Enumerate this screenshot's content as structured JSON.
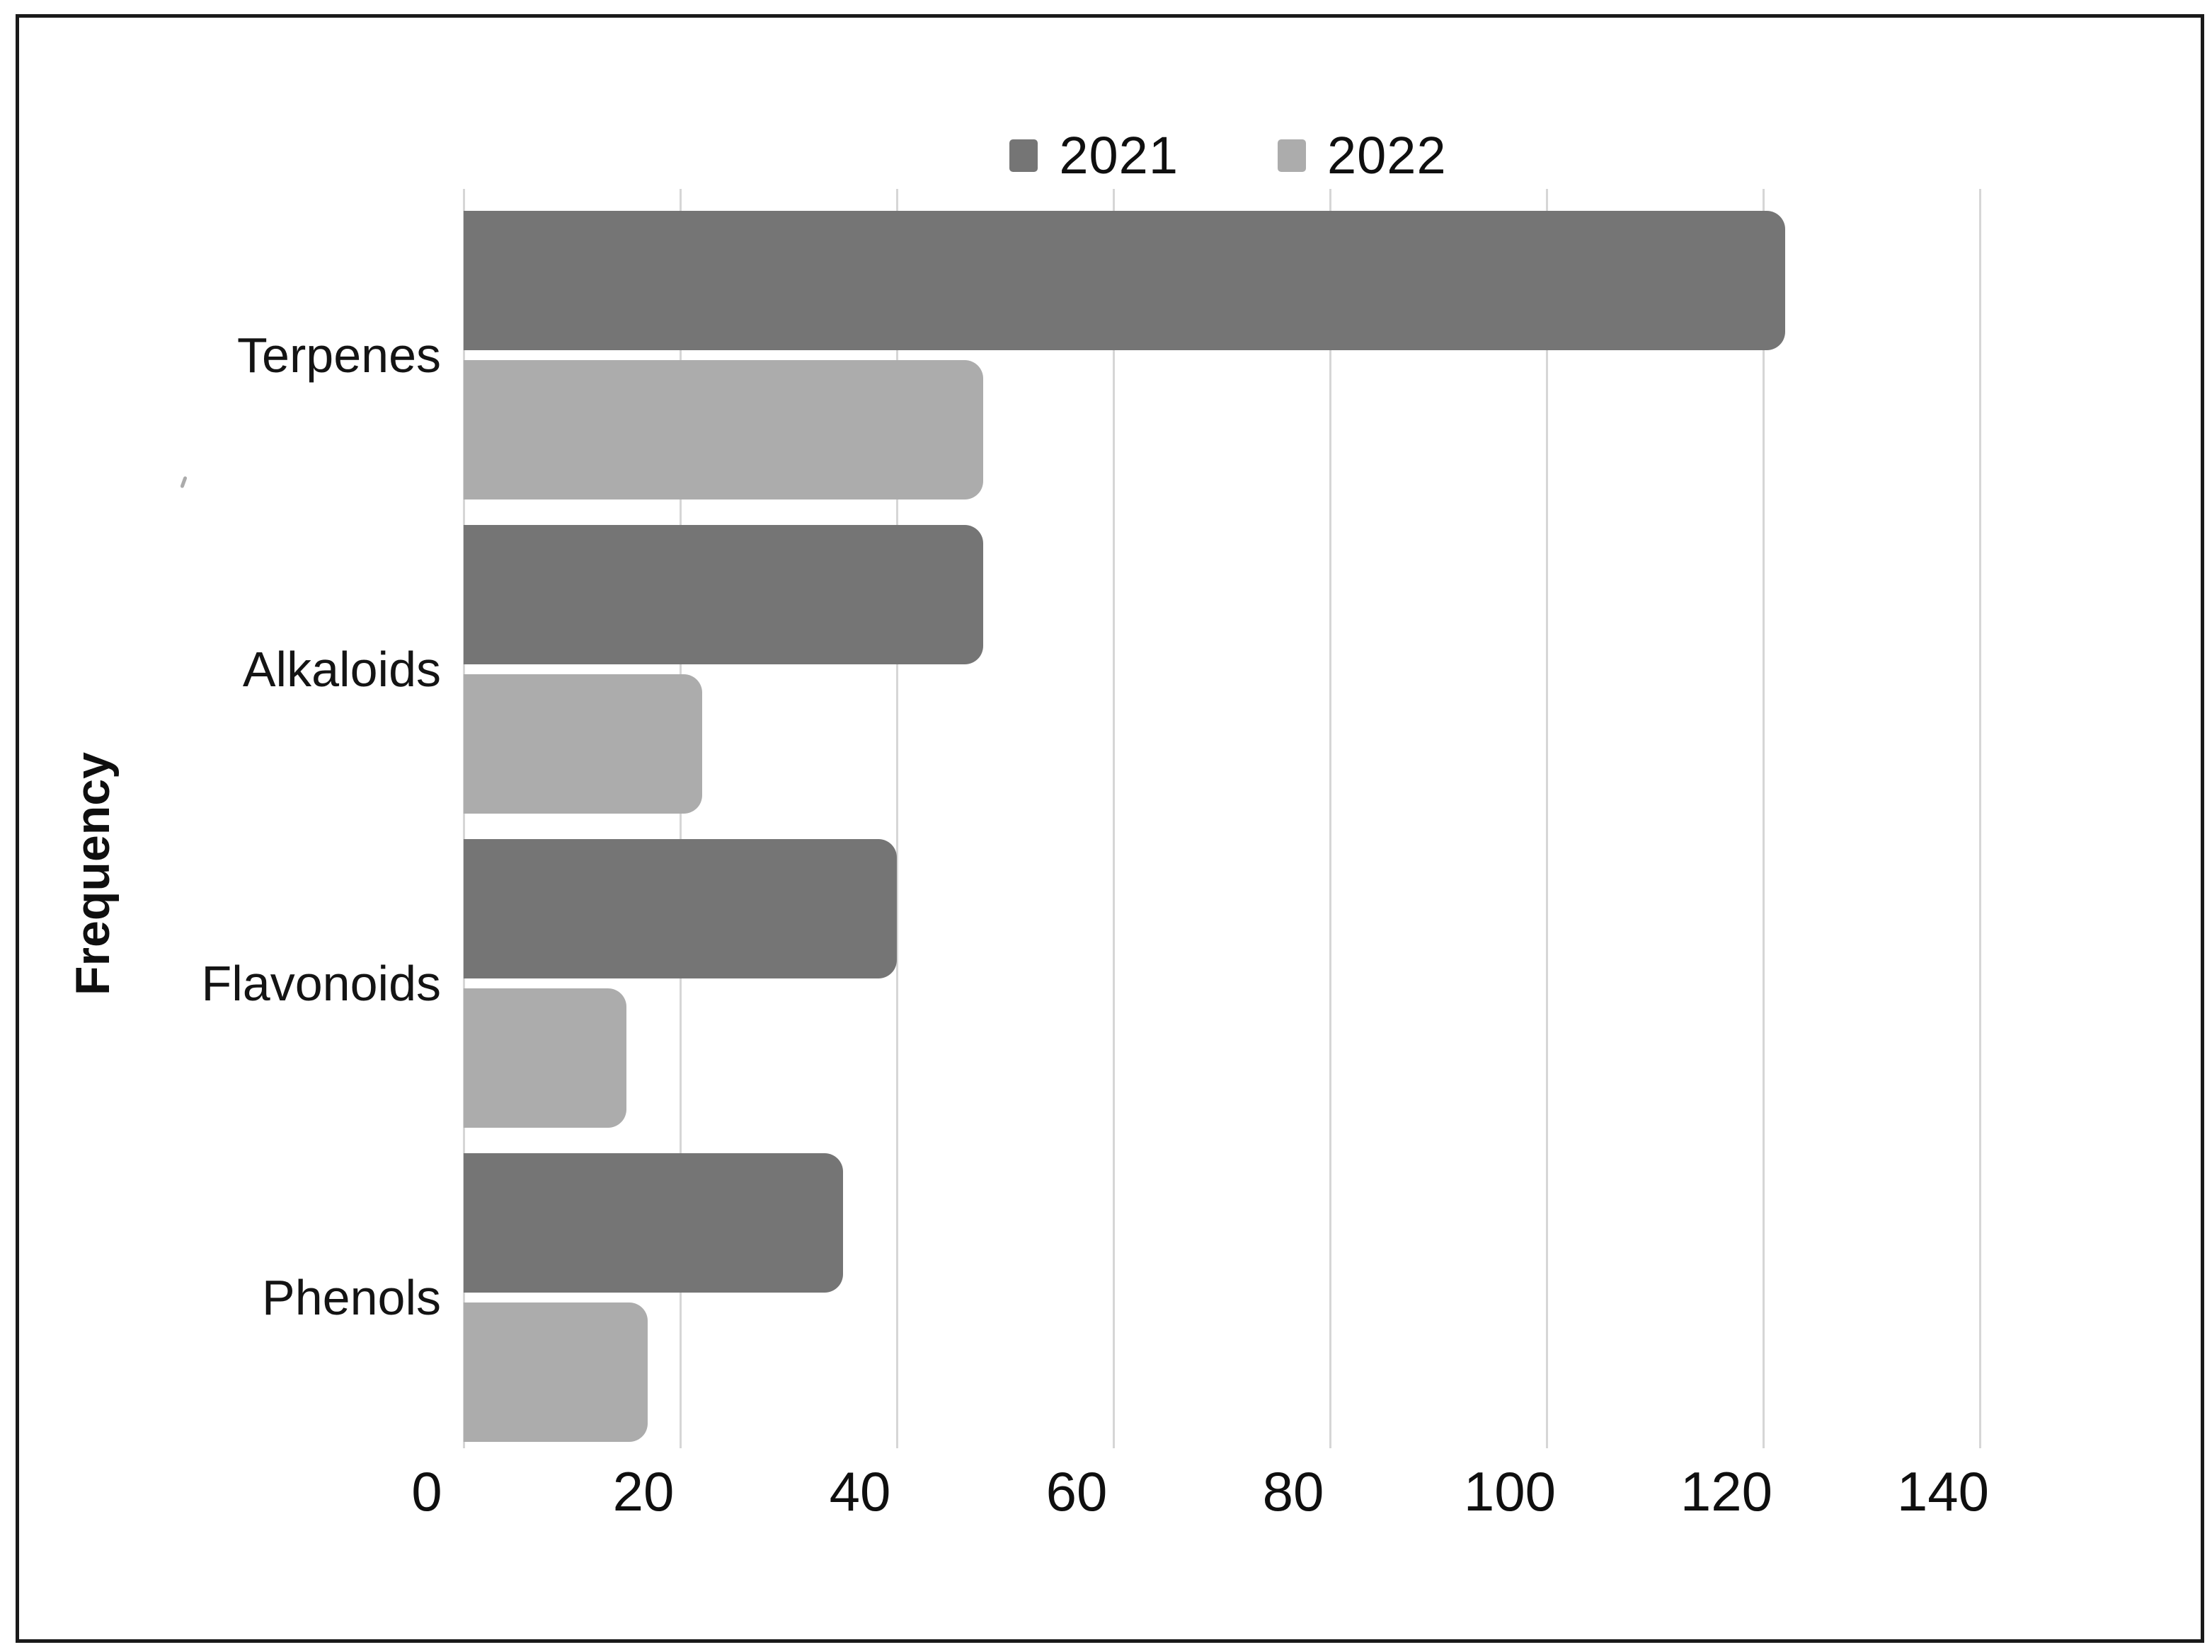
{
  "chart_data": {
    "type": "bar",
    "orientation": "horizontal",
    "title": "",
    "categories": [
      "Terpenes",
      "Alkaloids",
      "Flavonoids",
      "Phenols"
    ],
    "series": [
      {
        "name": "2021",
        "color": "#757575",
        "values": [
          122,
          48,
          40,
          35
        ]
      },
      {
        "name": "2022",
        "color": "#acacac",
        "values": [
          48,
          22,
          15,
          17
        ]
      }
    ],
    "xlabel": "",
    "ylabel": "Frequency",
    "xticks": [
      0,
      20,
      40,
      60,
      80,
      100,
      120,
      140
    ],
    "xlim": [
      0,
      140
    ],
    "grid": true,
    "gridline_color": "#d6d6d6",
    "legend_position": "top",
    "text_color": "#141414",
    "frame_color": "#1a1a1a",
    "background_color": "#ffffff"
  }
}
